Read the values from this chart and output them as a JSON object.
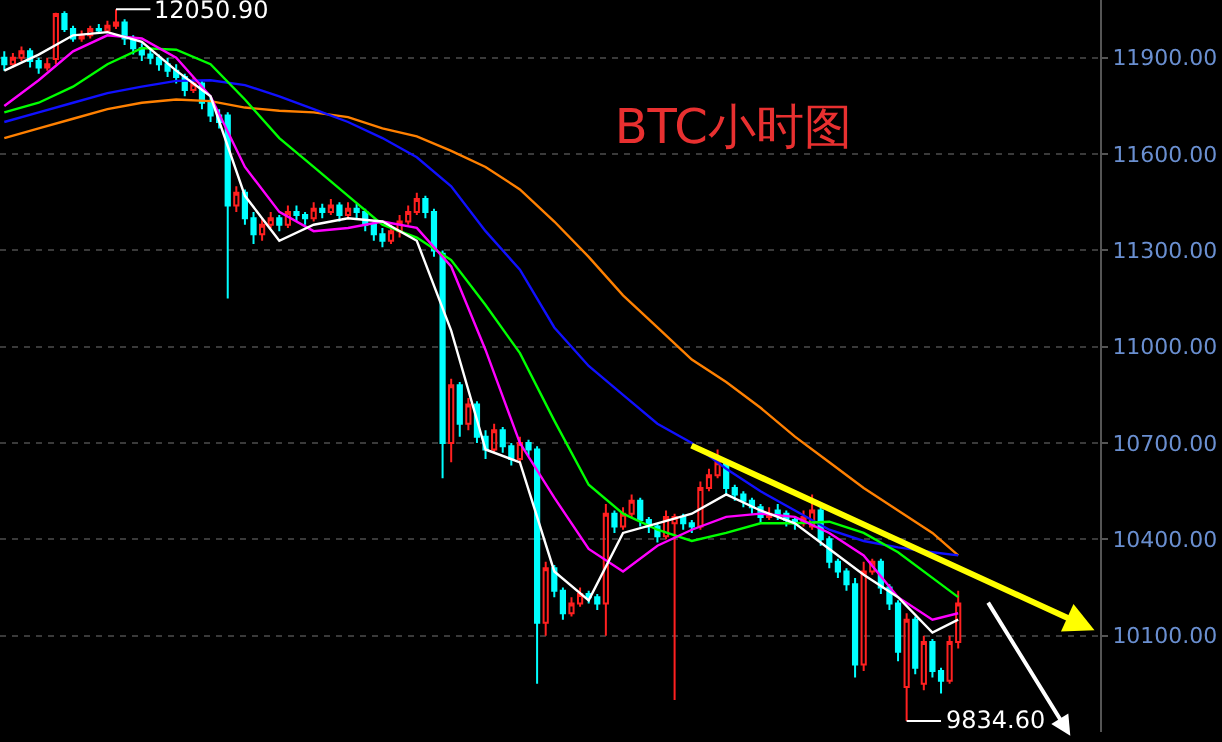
{
  "chart_data": {
    "type": "candlestick",
    "title": "BTC小时图",
    "categories": [
      null,
      null,
      null,
      null,
      null,
      null,
      null,
      null,
      null,
      null,
      null,
      null,
      null,
      null,
      null,
      null,
      null,
      null,
      null,
      null,
      null,
      null,
      null,
      null,
      null,
      null,
      null,
      null,
      null,
      null,
      null,
      null,
      null,
      null,
      null,
      null,
      null,
      null,
      null,
      null,
      null,
      null,
      null,
      null,
      null,
      null,
      null,
      null,
      null,
      null,
      null,
      null,
      null,
      null,
      null,
      null,
      null,
      null,
      null,
      null,
      null,
      null,
      null,
      null,
      null,
      null,
      null,
      null,
      null,
      null,
      null,
      null,
      null,
      null,
      null,
      null,
      null,
      null,
      null,
      null,
      null,
      null,
      null,
      null,
      null,
      null,
      null,
      null,
      null,
      null,
      null,
      null,
      null,
      null,
      null,
      null,
      null,
      null,
      null,
      null,
      null,
      null,
      null,
      null,
      null,
      null,
      null,
      null,
      null,
      null,
      null,
      null,
      null,
      null,
      null,
      null,
      null,
      null,
      null,
      null,
      null,
      null,
      null,
      null,
      null,
      null,
      null,
      null
    ],
    "ohlc": [
      [
        11900,
        11920,
        11860,
        11880
      ],
      [
        11880,
        11915,
        11870,
        11900
      ],
      [
        11900,
        11935,
        11890,
        11920
      ],
      [
        11920,
        11930,
        11870,
        11890
      ],
      [
        11890,
        11900,
        11850,
        11870
      ],
      [
        11870,
        11900,
        11860,
        11880
      ],
      [
        11896,
        12040,
        11880,
        12036
      ],
      [
        12036,
        12045,
        11980,
        11990
      ],
      [
        11990,
        12000,
        11950,
        11960
      ],
      [
        11960,
        11985,
        11950,
        11970
      ],
      [
        11970,
        12000,
        11960,
        11990
      ],
      [
        11990,
        12005,
        11975,
        11985
      ],
      [
        11985,
        12015,
        11980,
        12000
      ],
      [
        12000,
        12050.9,
        11990,
        12010
      ],
      [
        12010,
        12020,
        11940,
        11960
      ],
      [
        11960,
        11970,
        11910,
        11930
      ],
      [
        11930,
        11945,
        11890,
        11910
      ],
      [
        11910,
        11930,
        11880,
        11900
      ],
      [
        11900,
        11910,
        11860,
        11880
      ],
      [
        11880,
        11900,
        11840,
        11860
      ],
      [
        11860,
        11880,
        11820,
        11840
      ],
      [
        11840,
        11850,
        11780,
        11800
      ],
      [
        11800,
        11840,
        11790,
        11820
      ],
      [
        11820,
        11830,
        11740,
        11760
      ],
      [
        11760,
        11780,
        11700,
        11720
      ],
      [
        11720,
        11740,
        11680,
        11700
      ],
      [
        11720,
        11730,
        11150,
        11440
      ],
      [
        11440,
        11500,
        11420,
        11480
      ],
      [
        11480,
        11490,
        11380,
        11400
      ],
      [
        11400,
        11420,
        11320,
        11350
      ],
      [
        11350,
        11400,
        11330,
        11380
      ],
      [
        11380,
        11420,
        11370,
        11400
      ],
      [
        11400,
        11410,
        11360,
        11380
      ],
      [
        11380,
        11440,
        11370,
        11420
      ],
      [
        11420,
        11440,
        11390,
        11410
      ],
      [
        11410,
        11420,
        11380,
        11400
      ],
      [
        11400,
        11450,
        11390,
        11430
      ],
      [
        11430,
        11445,
        11400,
        11420
      ],
      [
        11420,
        11460,
        11410,
        11440
      ],
      [
        11440,
        11450,
        11390,
        11410
      ],
      [
        11410,
        11450,
        11400,
        11430
      ],
      [
        11430,
        11445,
        11400,
        11420
      ],
      [
        11420,
        11430,
        11360,
        11380
      ],
      [
        11380,
        11390,
        11330,
        11350
      ],
      [
        11350,
        11370,
        11310,
        11330
      ],
      [
        11330,
        11380,
        11320,
        11360
      ],
      [
        11360,
        11410,
        11340,
        11390
      ],
      [
        11390,
        11440,
        11380,
        11420
      ],
      [
        11420,
        11480,
        11410,
        11460
      ],
      [
        11460,
        11470,
        11400,
        11420
      ],
      [
        11420,
        11430,
        11280,
        11300
      ],
      [
        11290,
        11300,
        10590,
        10700
      ],
      [
        10700,
        10900,
        10640,
        10880
      ],
      [
        10880,
        10890,
        10720,
        10760
      ],
      [
        10760,
        10840,
        10740,
        10820
      ],
      [
        10820,
        10830,
        10700,
        10720
      ],
      [
        10720,
        10740,
        10650,
        10680
      ],
      [
        10680,
        10760,
        10670,
        10740
      ],
      [
        10740,
        10750,
        10670,
        10690
      ],
      [
        10690,
        10700,
        10630,
        10650
      ],
      [
        10650,
        10720,
        10640,
        10700
      ],
      [
        10700,
        10710,
        10660,
        10680
      ],
      [
        10680,
        10690,
        9950,
        10140
      ],
      [
        10140,
        10330,
        10100,
        10310
      ],
      [
        10310,
        10320,
        10220,
        10240
      ],
      [
        10240,
        10250,
        10150,
        10170
      ],
      [
        10170,
        10220,
        10160,
        10200
      ],
      [
        10200,
        10250,
        10190,
        10230
      ],
      [
        10230,
        10240,
        10200,
        10220
      ],
      [
        10220,
        10230,
        10180,
        10200
      ],
      [
        10200,
        10510,
        10100,
        10480
      ],
      [
        10480,
        10490,
        10420,
        10440
      ],
      [
        10440,
        10500,
        10430,
        10480
      ],
      [
        10480,
        10540,
        10470,
        10520
      ],
      [
        10520,
        10530,
        10440,
        10460
      ],
      [
        10460,
        10470,
        10420,
        10440
      ],
      [
        10440,
        10450,
        10390,
        10410
      ],
      [
        10410,
        10490,
        10400,
        10470
      ],
      [
        10450,
        10480,
        9900,
        10470
      ],
      [
        10470,
        10480,
        10430,
        10450
      ],
      [
        10450,
        10460,
        10420,
        10440
      ],
      [
        10440,
        10580,
        10430,
        10560
      ],
      [
        10560,
        10620,
        10550,
        10600
      ],
      [
        10600,
        10680,
        10590,
        10640
      ],
      [
        10640,
        10650,
        10540,
        10560
      ],
      [
        10560,
        10570,
        10520,
        10540
      ],
      [
        10540,
        10550,
        10500,
        10520
      ],
      [
        10520,
        10530,
        10480,
        10500
      ],
      [
        10500,
        10510,
        10450,
        10470
      ],
      [
        10470,
        10500,
        10460,
        10480
      ],
      [
        10490,
        10510,
        10460,
        10480
      ],
      [
        10480,
        10490,
        10440,
        10460
      ],
      [
        10460,
        10470,
        10430,
        10450
      ],
      [
        10450,
        10490,
        10440,
        10470
      ],
      [
        10440,
        10540,
        10430,
        10490
      ],
      [
        10490,
        10500,
        10380,
        10400
      ],
      [
        10400,
        10410,
        10310,
        10330
      ],
      [
        10330,
        10340,
        10280,
        10300
      ],
      [
        10300,
        10310,
        10240,
        10260
      ],
      [
        10260,
        10280,
        9970,
        10010
      ],
      [
        10010,
        10330,
        9990,
        10300
      ],
      [
        10300,
        10340,
        10290,
        10330
      ],
      [
        10330,
        10340,
        10230,
        10250
      ],
      [
        10250,
        10260,
        10180,
        10200
      ],
      [
        10200,
        10210,
        10020,
        10050
      ],
      [
        9940,
        10170,
        9834.6,
        10150
      ],
      [
        10150,
        10160,
        9980,
        10000
      ],
      [
        9950,
        10100,
        9930,
        10080
      ],
      [
        10080,
        10090,
        9970,
        9990
      ],
      [
        9990,
        10000,
        9920,
        9960
      ],
      [
        9960,
        10100,
        9950,
        10080
      ],
      [
        10080,
        10240,
        10060,
        10200
      ],
      null,
      null,
      null,
      null,
      null,
      null,
      null,
      null,
      null,
      null,
      null,
      null,
      null,
      null,
      null,
      null
    ],
    "colors": [
      "#00ffff",
      "#ff2020",
      "#ff2020",
      "#00ffff",
      "#00ffff",
      "#ff2020",
      "#ff2020",
      "#00ffff",
      "#00ffff",
      "#ff2020",
      "#ff2020",
      "#00ffff",
      "#ff2020",
      "#ff2020",
      "#00ffff",
      "#00ffff",
      "#00ffff",
      "#00ffff",
      "#00ffff",
      "#00ffff",
      "#00ffff",
      "#00ffff",
      "#ff2020",
      "#00ffff",
      "#00ffff",
      "#00ffff",
      "#00ffff",
      "#ff2020",
      "#00ffff",
      "#00ffff",
      "#ff2020",
      "#ff2020",
      "#00ffff",
      "#ff2020",
      "#00ffff",
      "#00ffff",
      "#ff2020",
      "#00ffff",
      "#ff2020",
      "#00ffff",
      "#ff2020",
      "#00ffff",
      "#00ffff",
      "#00ffff",
      "#00ffff",
      "#ff2020",
      "#ff2020",
      "#ff2020",
      "#ff2020",
      "#00ffff",
      "#00ffff",
      "#00ffff",
      "#ff2020",
      "#00ffff",
      "#ff2020",
      "#00ffff",
      "#00ffff",
      "#ff2020",
      "#00ffff",
      "#00ffff",
      "#ff2020",
      "#00ffff",
      "#00ffff",
      "#ff2020",
      "#00ffff",
      "#00ffff",
      "#ff2020",
      "#ff2020",
      "#00ffff",
      "#00ffff",
      "#ff2020",
      "#00ffff",
      "#ff2020",
      "#ff2020",
      "#00ffff",
      "#00ffff",
      "#00ffff",
      "#ff2020",
      "#ff2020",
      "#00ffff",
      "#00ffff",
      "#ff2020",
      "#ff2020",
      "#ff2020",
      "#00ffff",
      "#00ffff",
      "#00ffff",
      "#00ffff",
      "#00ffff",
      "#ff2020",
      "#00ffff",
      "#00ffff",
      "#00ffff",
      "#ff2020",
      "#ff2020",
      "#00ffff",
      "#00ffff",
      "#00ffff",
      "#00ffff",
      "#00ffff",
      "#ff2020",
      "#ff2020",
      "#00ffff",
      "#00ffff",
      "#00ffff",
      "#ff2020",
      "#00ffff",
      "#ff2020",
      "#00ffff",
      "#00ffff",
      "#ff2020",
      "#ff2020",
      null,
      null,
      null,
      null,
      null,
      null,
      null,
      null,
      null,
      null,
      null,
      null,
      null,
      null,
      null,
      null
    ],
    "series": [
      {
        "type": "line",
        "color": "#ff8000",
        "values": [
          11650,
          null,
          null,
          null,
          11680,
          null,
          null,
          null,
          11710,
          null,
          null,
          null,
          11740,
          null,
          null,
          null,
          11760,
          null,
          null,
          null,
          11770,
          null,
          null,
          null,
          11765,
          null,
          null,
          null,
          11745,
          null,
          null,
          null,
          11735,
          null,
          null,
          null,
          11730,
          null,
          null,
          null,
          11715,
          null,
          null,
          null,
          11680,
          null,
          null,
          null,
          11655,
          null,
          null,
          null,
          11610,
          null,
          null,
          null,
          11560,
          null,
          null,
          null,
          11490,
          null,
          null,
          null,
          11390,
          null,
          null,
          null,
          11280,
          null,
          null,
          null,
          11160,
          null,
          null,
          null,
          11060,
          null,
          null,
          null,
          10960,
          null,
          null,
          null,
          10890,
          null,
          null,
          null,
          10810,
          null,
          null,
          null,
          10720,
          null,
          null,
          null,
          10640,
          null,
          null,
          null,
          10560,
          null,
          null,
          null,
          10490,
          null,
          null,
          null,
          10420,
          null,
          null,
          10350,
          null,
          null,
          null,
          null,
          null,
          null,
          null,
          null,
          null,
          null,
          null,
          null,
          null,
          null,
          null,
          null
        ]
      },
      {
        "type": "line",
        "color": "#1010ff",
        "values": [
          11700,
          null,
          null,
          null,
          11730,
          null,
          null,
          null,
          11760,
          null,
          null,
          null,
          11790,
          null,
          null,
          null,
          11810,
          null,
          null,
          null,
          11828,
          null,
          null,
          null,
          11830,
          null,
          null,
          null,
          11815,
          null,
          null,
          null,
          11780,
          null,
          null,
          null,
          11740,
          null,
          null,
          null,
          11700,
          null,
          null,
          null,
          11650,
          null,
          null,
          null,
          11590,
          null,
          null,
          null,
          11500,
          null,
          null,
          null,
          11360,
          null,
          null,
          null,
          11240,
          null,
          null,
          null,
          11060,
          null,
          null,
          null,
          10940,
          null,
          null,
          null,
          10850,
          null,
          null,
          null,
          10760,
          null,
          null,
          null,
          10700,
          null,
          null,
          null,
          10620,
          null,
          null,
          null,
          10550,
          null,
          null,
          null,
          10490,
          null,
          null,
          null,
          10430,
          null,
          null,
          null,
          10395,
          null,
          null,
          null,
          10375,
          null,
          null,
          null,
          10360,
          null,
          null,
          10350,
          null,
          null,
          null,
          null,
          null,
          null,
          null,
          null,
          null,
          null,
          null,
          null,
          null,
          null,
          null,
          null
        ]
      },
      {
        "type": "line",
        "color": "#00ff00",
        "values": [
          11730,
          null,
          null,
          null,
          11760,
          null,
          null,
          null,
          11810,
          null,
          null,
          null,
          11880,
          null,
          null,
          null,
          11930,
          null,
          null,
          null,
          11925,
          null,
          null,
          null,
          11880,
          null,
          null,
          null,
          11770,
          null,
          null,
          null,
          11650,
          null,
          null,
          null,
          11560,
          null,
          null,
          null,
          11470,
          null,
          null,
          null,
          11380,
          null,
          null,
          null,
          11340,
          null,
          null,
          null,
          11270,
          null,
          null,
          null,
          11130,
          null,
          null,
          null,
          10980,
          null,
          null,
          null,
          10770,
          null,
          null,
          null,
          10570,
          null,
          null,
          null,
          10480,
          null,
          null,
          null,
          10430,
          null,
          null,
          null,
          10395,
          null,
          null,
          null,
          10420,
          null,
          null,
          null,
          10450,
          null,
          null,
          null,
          10450,
          null,
          null,
          null,
          10455,
          null,
          null,
          null,
          10420,
          null,
          null,
          null,
          10360,
          null,
          null,
          null,
          10280,
          null,
          null,
          10220,
          null,
          null,
          null,
          null,
          null,
          null,
          null,
          null,
          null,
          null,
          null,
          null,
          null,
          null,
          null,
          null
        ]
      },
      {
        "type": "line",
        "color": "#ff00ff",
        "values": [
          11750,
          null,
          null,
          null,
          11830,
          null,
          null,
          null,
          11920,
          null,
          null,
          null,
          11970,
          null,
          null,
          null,
          11960,
          null,
          null,
          null,
          11900,
          null,
          null,
          null,
          11780,
          null,
          null,
          null,
          11560,
          null,
          null,
          null,
          11420,
          null,
          null,
          null,
          11360,
          null,
          null,
          null,
          11370,
          null,
          null,
          null,
          11390,
          null,
          null,
          null,
          11370,
          null,
          null,
          null,
          11250,
          null,
          null,
          null,
          10990,
          null,
          null,
          null,
          10700,
          null,
          null,
          null,
          10530,
          null,
          null,
          null,
          10370,
          null,
          null,
          null,
          10300,
          null,
          null,
          null,
          10380,
          null,
          null,
          null,
          10430,
          null,
          null,
          null,
          10470,
          null,
          null,
          null,
          10480,
          null,
          null,
          null,
          10470,
          null,
          null,
          null,
          10420,
          null,
          null,
          null,
          10350,
          null,
          null,
          null,
          10220,
          null,
          null,
          null,
          10150,
          null,
          null,
          10170,
          null,
          null,
          null,
          null,
          null,
          null,
          null,
          null,
          null,
          null,
          null,
          null,
          null,
          null,
          null,
          null
        ]
      },
      {
        "type": "line",
        "color": "#ffffff",
        "values": [
          11860,
          null,
          null,
          null,
          11910,
          null,
          null,
          null,
          11970,
          null,
          null,
          null,
          11980,
          null,
          null,
          null,
          11950,
          null,
          null,
          null,
          11860,
          null,
          null,
          null,
          11780,
          null,
          null,
          null,
          11470,
          null,
          null,
          null,
          11330,
          null,
          null,
          null,
          11380,
          null,
          null,
          null,
          11400,
          null,
          null,
          null,
          11390,
          null,
          null,
          null,
          11330,
          null,
          null,
          null,
          11050,
          null,
          null,
          null,
          10680,
          null,
          null,
          null,
          10640,
          null,
          null,
          null,
          10300,
          null,
          null,
          null,
          10210,
          null,
          null,
          null,
          10420,
          null,
          null,
          null,
          10450,
          null,
          null,
          null,
          10480,
          null,
          null,
          null,
          10540,
          null,
          null,
          null,
          10490,
          null,
          null,
          null,
          10450,
          null,
          null,
          null,
          10370,
          null,
          null,
          null,
          10290,
          null,
          null,
          null,
          10220,
          null,
          null,
          null,
          10110,
          null,
          null,
          10150,
          null,
          null,
          null,
          null,
          null,
          null,
          null,
          null,
          null,
          null,
          null,
          null,
          null,
          null,
          null,
          null
        ]
      }
    ],
    "annotations": [
      "12050.90",
      "9834.60"
    ],
    "ylim": [
      9800,
      12080
    ],
    "yticks": [
      {
        "value": 10100,
        "label": "10100.00"
      },
      {
        "value": 10400,
        "label": "10400.00"
      },
      {
        "value": 10700,
        "label": "10700.00"
      },
      {
        "value": 11000,
        "label": "11000.00"
      },
      {
        "value": 11300,
        "label": "11300.00"
      },
      {
        "value": 11600,
        "label": "11600.00"
      },
      {
        "value": 11900,
        "label": "11900.00"
      }
    ],
    "grid": "y",
    "tick_labels": "y"
  }
}
